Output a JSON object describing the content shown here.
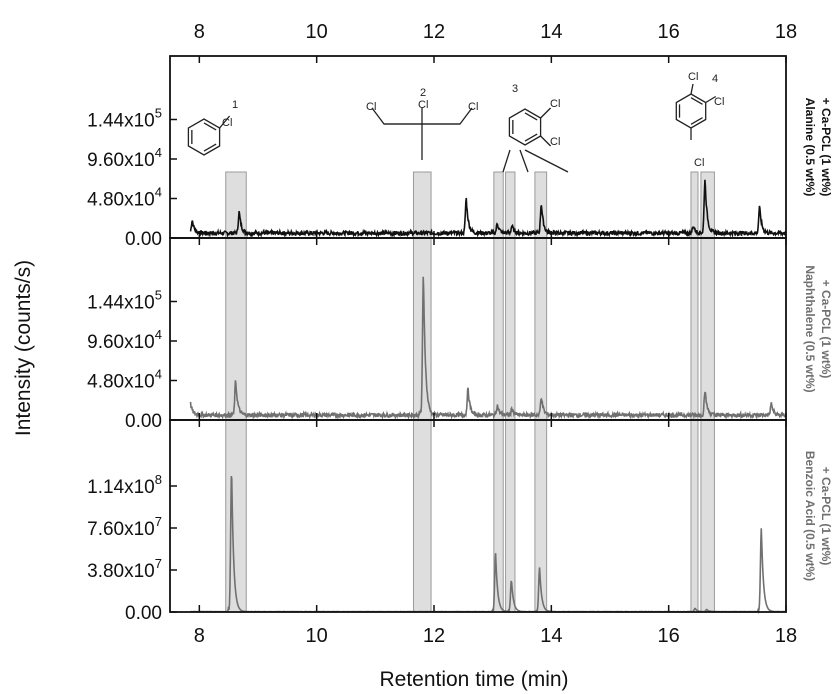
{
  "chart_data": {
    "type": "line",
    "xlabel": "Retention time (min)",
    "ylabel": "Intensity (counts/s)",
    "xlim": [
      7.5,
      18
    ],
    "x_ticks": [
      8,
      10,
      12,
      14,
      16,
      18
    ],
    "x_tick_labels": [
      "8",
      "10",
      "12",
      "14",
      "16",
      "18"
    ],
    "grid": false,
    "highlight_color": "#d9d9d9",
    "highlight_bands": [
      {
        "peak": "1",
        "range": [
          8.45,
          8.8
        ]
      },
      {
        "peak": "2",
        "range": [
          11.65,
          11.95
        ]
      },
      {
        "peak": "3",
        "range": [
          13.02,
          13.18
        ]
      },
      {
        "peak": "3",
        "range": [
          13.22,
          13.38
        ]
      },
      {
        "peak": "3",
        "range": [
          13.72,
          13.92
        ]
      },
      {
        "peak": "4",
        "range": [
          16.38,
          16.5
        ]
      },
      {
        "peak": "4",
        "range": [
          16.55,
          16.78
        ]
      }
    ],
    "compound_labels": [
      {
        "number": "1",
        "substituent_labels": [
          "Cl"
        ]
      },
      {
        "number": "2",
        "substituent_labels": [
          "Cl",
          "Cl",
          "Cl"
        ]
      },
      {
        "number": "3",
        "substituent_labels": [
          "Cl",
          "Cl"
        ]
      },
      {
        "number": "4",
        "substituent_labels": [
          "Cl",
          "Cl",
          "Cl"
        ]
      }
    ],
    "panels": [
      {
        "name": "Alanine (0.5 wt%) + Ca-PCL (1 wt%)",
        "side_label_lines": [
          "Alanine (0.5 wt%)",
          "+ Ca-PCL (1 wt%)"
        ],
        "color": "#111111",
        "ylim": [
          0,
          192000
        ],
        "y_ticks": [
          0,
          48000,
          96000,
          144000
        ],
        "y_tick_mantissa": [
          "0.00",
          "4.80x10",
          "9.60x10",
          "1.44x10"
        ],
        "y_tick_exponent": [
          "",
          "4",
          "4",
          "5"
        ],
        "baseline": 6000,
        "noise": 2500,
        "peaks": [
          {
            "x": 7.88,
            "y": 16000
          },
          {
            "x": 8.68,
            "y": 26000
          },
          {
            "x": 12.55,
            "y": 42000
          },
          {
            "x": 13.08,
            "y": 12000
          },
          {
            "x": 13.33,
            "y": 9000
          },
          {
            "x": 13.83,
            "y": 36000
          },
          {
            "x": 16.42,
            "y": 9000
          },
          {
            "x": 16.62,
            "y": 66000
          },
          {
            "x": 17.55,
            "y": 32000
          }
        ]
      },
      {
        "name": "Naphthalene (0.5 wt%) + Ca-PCL (1 wt%)",
        "side_label_lines": [
          "Naphthalene (0.5 wt%)",
          "+ Ca-PCL (1 wt%)"
        ],
        "color": "#707070",
        "ylim": [
          0,
          192000
        ],
        "y_ticks": [
          0,
          48000,
          96000,
          144000
        ],
        "y_tick_mantissa": [
          "0.00",
          "4.80x10",
          "9.60x10",
          "1.44x10"
        ],
        "y_tick_exponent": [
          "",
          "4",
          "4",
          "5"
        ],
        "baseline": 6000,
        "noise": 2500,
        "peaks": [
          {
            "x": 7.85,
            "y": 14000
          },
          {
            "x": 8.62,
            "y": 42000
          },
          {
            "x": 11.82,
            "y": 172000
          },
          {
            "x": 12.58,
            "y": 32000
          },
          {
            "x": 13.08,
            "y": 12000
          },
          {
            "x": 13.33,
            "y": 8000
          },
          {
            "x": 13.83,
            "y": 22000
          },
          {
            "x": 16.62,
            "y": 30000
          },
          {
            "x": 17.75,
            "y": 14000
          }
        ]
      },
      {
        "name": "Benzoic Acid (0.5 wt%) + Ca-PCL (1 wt%)",
        "side_label_lines": [
          "Benzoic Acid (0.5 wt%)",
          "+ Ca-PCL (1 wt%)"
        ],
        "color": "#707070",
        "ylim": [
          0,
          152000000
        ],
        "y_ticks": [
          0,
          38000000,
          76000000,
          114000000
        ],
        "y_tick_mantissa": [
          "0.00",
          "3.80x10",
          "7.60x10",
          "1.14x10"
        ],
        "y_tick_exponent": [
          "",
          "7",
          "7",
          "8"
        ],
        "baseline": 300000,
        "noise": 150000,
        "peaks": [
          {
            "x": 8.55,
            "y": 130000000
          },
          {
            "x": 13.05,
            "y": 53000000
          },
          {
            "x": 13.32,
            "y": 29000000
          },
          {
            "x": 13.8,
            "y": 40000000
          },
          {
            "x": 16.45,
            "y": 3000000
          },
          {
            "x": 16.65,
            "y": 2000000
          },
          {
            "x": 17.58,
            "y": 76000000
          }
        ]
      }
    ]
  }
}
